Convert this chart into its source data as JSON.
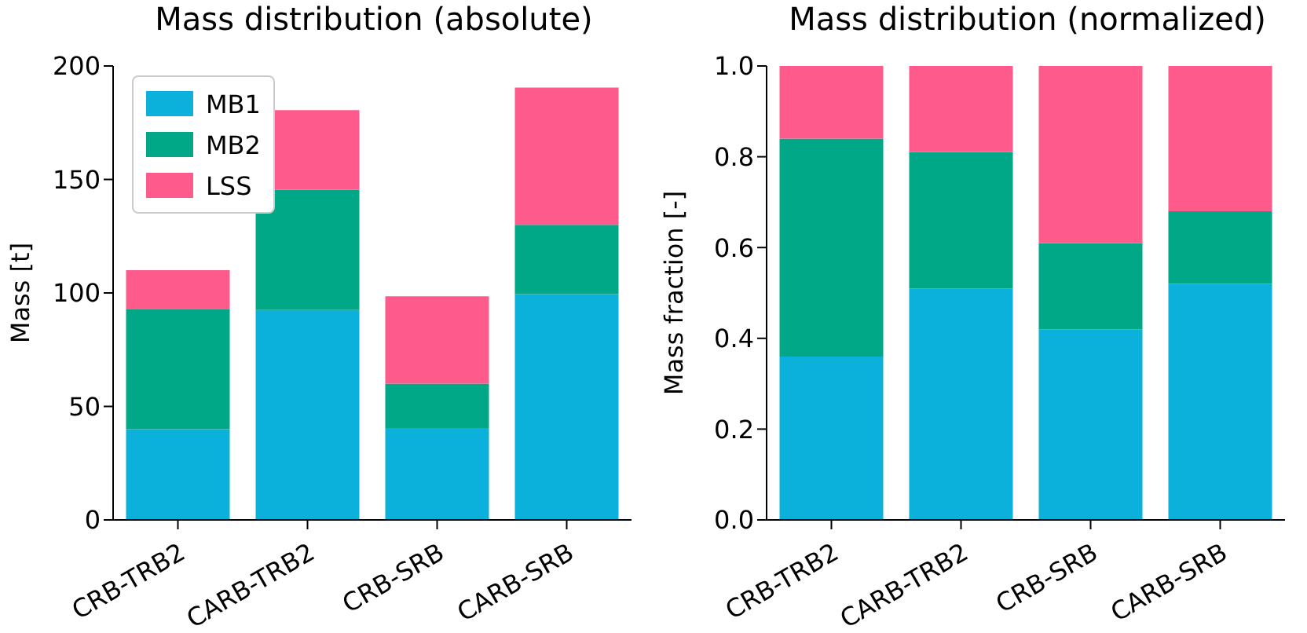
{
  "chart_data": [
    {
      "type": "bar",
      "title": "Mass distribution (absolute)",
      "ylabel": "Mass [t]",
      "stacked": true,
      "legend": "top left",
      "categories": [
        "CRB-TRB2",
        "CARB-TRB2",
        "CRB-SRB",
        "CARB-SRB"
      ],
      "series": [
        {
          "name": "MB1",
          "color": "#0bb1da",
          "values": [
            40,
            92.5,
            40.5,
            99.5
          ]
        },
        {
          "name": "MB2",
          "color": "#00a887",
          "values": [
            53,
            53,
            19.5,
            30.5
          ]
        },
        {
          "name": "LSS",
          "color": "#ff5a8c",
          "values": [
            17,
            35,
            38.5,
            60.5
          ]
        }
      ],
      "ylim": [
        0,
        200
      ],
      "yticks": [
        0,
        50,
        100,
        150,
        200
      ]
    },
    {
      "type": "bar",
      "title": "Mass distribution (normalized)",
      "ylabel": "Mass fraction [-]",
      "stacked": true,
      "categories": [
        "CRB-TRB2",
        "CARB-TRB2",
        "CRB-SRB",
        "CARB-SRB"
      ],
      "series": [
        {
          "color": "#0bb1da",
          "values": [
            0.36,
            0.51,
            0.42,
            0.52
          ]
        },
        {
          "color": "#00a887",
          "values": [
            0.48,
            0.3,
            0.19,
            0.16
          ]
        },
        {
          "color": "#ff5a8c",
          "values": [
            0.16,
            0.19,
            0.39,
            0.32
          ]
        }
      ],
      "ylim": [
        0,
        1
      ],
      "yticks": [
        {
          "value": 0,
          "label": "0.0"
        },
        0.2,
        0.4,
        0.6,
        0.8,
        {
          "value": 1,
          "label": "1.0"
        }
      ]
    }
  ]
}
